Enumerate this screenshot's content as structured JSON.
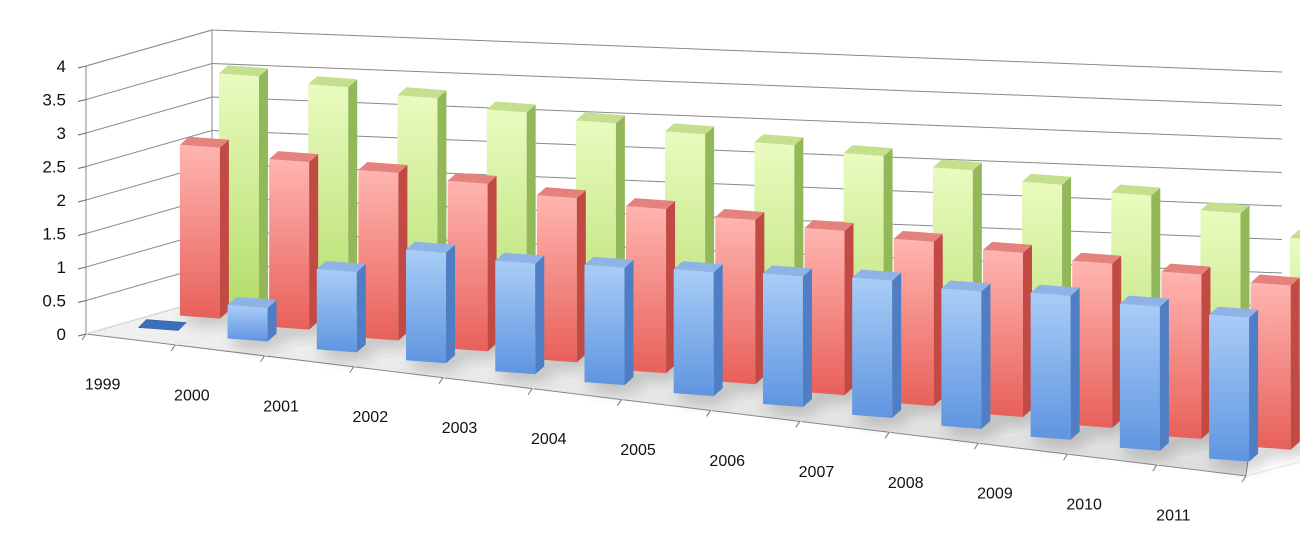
{
  "chart_data": {
    "type": "bar",
    "variant": "3d-column-depth",
    "title": "",
    "xlabel": "",
    "ylabel": "",
    "ylim": [
      0,
      4
    ],
    "yticks": [
      "0",
      "0.5",
      "1",
      "1.5",
      "2",
      "2.5",
      "3",
      "3.5",
      "4"
    ],
    "categories": [
      "1999",
      "2000",
      "2001",
      "2002",
      "2003",
      "2004",
      "2005",
      "2006",
      "2007",
      "2008",
      "2009",
      "2010",
      "2011"
    ],
    "grid": true,
    "legend": "none",
    "series": [
      {
        "color": "#79a9ea",
        "values": [
          0,
          0.5,
          1.2,
          1.65,
          1.65,
          1.75,
          1.85,
          1.95,
          2.05,
          2.05,
          2.15,
          2.15,
          2.15
        ]
      },
      {
        "color": "#f08882",
        "values": [
          2.55,
          2.5,
          2.5,
          2.5,
          2.45,
          2.45,
          2.45,
          2.45,
          2.45,
          2.45,
          2.45,
          2.45,
          2.45
        ]
      },
      {
        "color": "#c9ec8a",
        "values": [
          3.45,
          3.45,
          3.45,
          3.4,
          3.4,
          3.4,
          3.4,
          3.4,
          3.35,
          3.3,
          3.3,
          3.2,
          2.95
        ]
      }
    ]
  }
}
